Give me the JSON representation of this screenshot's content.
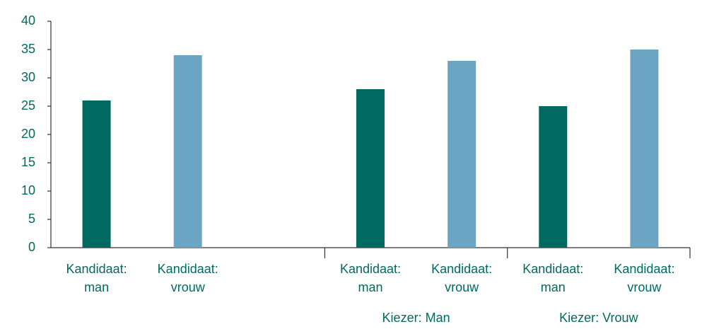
{
  "chart_data": {
    "type": "bar",
    "categories": [
      "Kandidaat: man",
      "Kandidaat: vrouw",
      null,
      "Kandidaat: man",
      "Kandidaat: vrouw",
      "Kandidaat: man",
      "Kandidaat: vrouw"
    ],
    "groups": [
      null,
      null,
      null,
      "Kiezer: Man",
      "Kiezer: Man",
      "Kiezer: Vrouw",
      "Kiezer: Vrouw"
    ],
    "values": [
      26,
      34,
      null,
      28,
      33,
      25,
      35
    ],
    "colors": [
      "#006a60",
      "#6ca5c4",
      null,
      "#006a60",
      "#6ca5c4",
      "#006a60",
      "#6ca5c4"
    ],
    "ylim": [
      0,
      40
    ],
    "yticks": [
      0,
      5,
      10,
      15,
      20,
      25,
      30,
      35,
      40
    ],
    "grid": false
  }
}
